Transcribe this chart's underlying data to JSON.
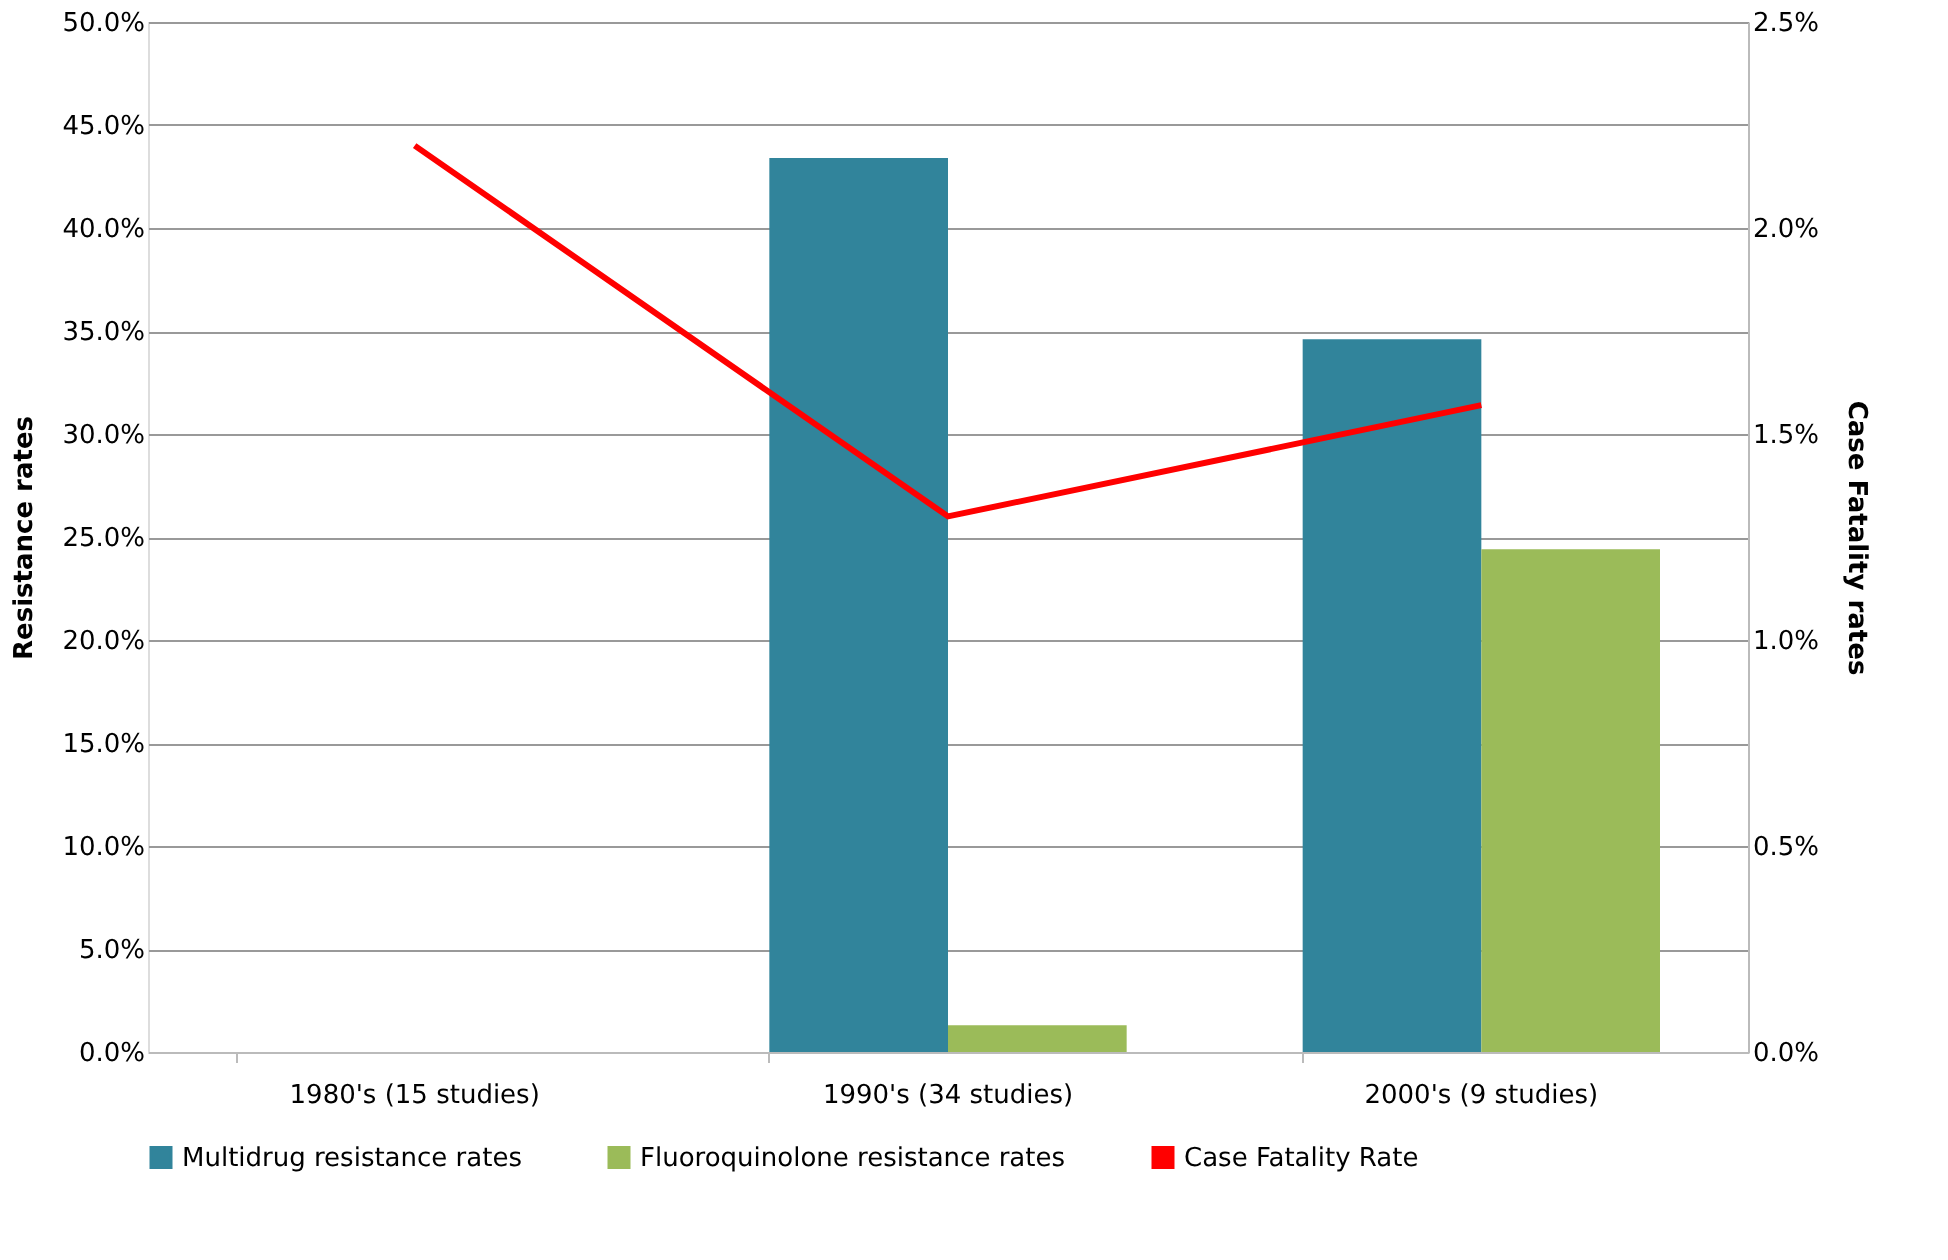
{
  "chart_data": {
    "type": "bar",
    "categories": [
      "1980's (15 studies)",
      "1990's (34 studies)",
      "2000's (9 studies)"
    ],
    "series": [
      {
        "name": "Multidrug resistance rates",
        "color": "#31849b",
        "values": [
          null,
          43.4,
          34.6
        ]
      },
      {
        "name": "Fluoroquinolone resistance rates",
        "color": "#9bbb59",
        "values": [
          null,
          1.3,
          24.4
        ]
      },
      {
        "name": "Case Fatality Rate",
        "color": "#ff0000",
        "type": "line",
        "axis": "y2",
        "marker": "none",
        "line_style": "solid",
        "values": [
          2.2,
          1.3,
          1.57
        ]
      }
    ],
    "ylabel": "Resistance rates",
    "y2label": "Case Fatality rates",
    "ylim": [
      0,
      50
    ],
    "yticks": [
      {
        "value": 0,
        "label": "0.0%"
      },
      {
        "value": 5,
        "label": "5.0%"
      },
      {
        "value": 10,
        "label": "10.0%"
      },
      {
        "value": 15,
        "label": "15.0%"
      },
      {
        "value": 20,
        "label": "20.0%"
      },
      {
        "value": 25,
        "label": "25.0%"
      },
      {
        "value": 30,
        "label": "30.0%"
      },
      {
        "value": 35,
        "label": "35.0%"
      },
      {
        "value": 40,
        "label": "40.0%"
      },
      {
        "value": 45,
        "label": "45.0%"
      },
      {
        "value": 50,
        "label": "50.0%"
      }
    ],
    "y2lim": [
      0,
      2.5
    ],
    "y2ticks": [
      {
        "value": 0,
        "label": "0.0%"
      },
      {
        "value": 0.5,
        "label": "0.5%"
      },
      {
        "value": 1.0,
        "label": "1.0%"
      },
      {
        "value": 1.5,
        "label": "1.5%"
      },
      {
        "value": 2.0,
        "label": "2.0%"
      },
      {
        "value": 2.5,
        "label": "2.5%"
      }
    ],
    "grid": "y",
    "legend": "bottom"
  }
}
